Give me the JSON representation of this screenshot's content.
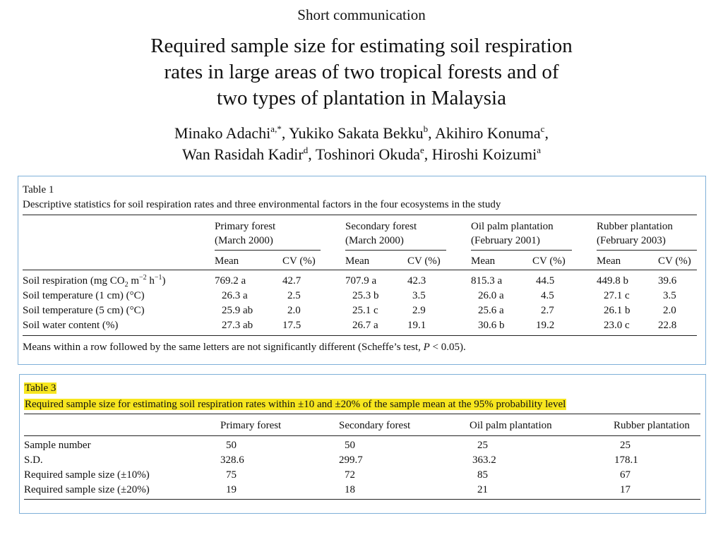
{
  "paper": {
    "kicker": "Short communication",
    "title_lines": [
      "Required sample size for estimating soil respiration",
      "rates in large areas of two tropical forests and of",
      "two types of plantation in Malaysia"
    ],
    "authors_line1": [
      {
        "name": "Minako Adachi",
        "aff": "a,*"
      },
      {
        "name": "Yukiko Sakata Bekku",
        "aff": "b"
      },
      {
        "name": "Akihiro Konuma",
        "aff": "c"
      }
    ],
    "authors_line2": [
      {
        "name": "Wan Rasidah Kadir",
        "aff": "d"
      },
      {
        "name": "Toshinori Okuda",
        "aff": "e"
      },
      {
        "name": "Hiroshi Koizumi",
        "aff": "a"
      }
    ]
  },
  "table1": {
    "label": "Table 1",
    "caption": "Descriptive statistics for soil respiration rates and three environmental factors in the four ecosystems in the study",
    "groups": [
      {
        "name": "Primary forest",
        "date": "(March 2000)"
      },
      {
        "name": "Secondary forest",
        "date": "(March 2000)"
      },
      {
        "name": "Oil palm plantation",
        "date": "(February 2001)"
      },
      {
        "name": "Rubber plantation",
        "date": "(February 2003)"
      }
    ],
    "subheaders": [
      "Mean",
      "CV (%)"
    ],
    "rows": [
      {
        "label": "Soil respiration (mg CO",
        "values": [
          [
            "769.2 a",
            "42.7"
          ],
          [
            "707.9 a",
            "42.3"
          ],
          [
            "815.3 a",
            "44.5"
          ],
          [
            "449.8 b",
            "39.6"
          ]
        ]
      },
      {
        "label": "Soil temperature (1 cm) (°C)",
        "values": [
          [
            "26.3 a",
            "2.5"
          ],
          [
            "25.3 b",
            "3.5"
          ],
          [
            "26.0 a",
            "4.5"
          ],
          [
            "27.1 c",
            "3.5"
          ]
        ]
      },
      {
        "label": "Soil temperature (5 cm) (°C)",
        "values": [
          [
            "25.9 ab",
            "2.0"
          ],
          [
            "25.1 c",
            "2.9"
          ],
          [
            "25.6 a",
            "2.7"
          ],
          [
            "26.1 b",
            "2.0"
          ]
        ]
      },
      {
        "label": "Soil water content (%)",
        "values": [
          [
            "27.3 ab",
            "17.5"
          ],
          [
            "26.7 a",
            "19.1"
          ],
          [
            "30.6 b",
            "19.2"
          ],
          [
            "23.0 c",
            "22.8"
          ]
        ]
      }
    ],
    "footnote_pre": "Means within a row followed by the same letters are not significantly different (Scheffe’s test, ",
    "footnote_p": "P",
    "footnote_post": " < 0.05)."
  },
  "table3": {
    "label": "Table 3",
    "caption": "Required sample size for estimating soil respiration rates within ±10 and ±20% of the sample mean at the 95% probability level",
    "columns": [
      "Primary forest",
      "Secondary forest",
      "Oil palm plantation",
      "Rubber plantation"
    ],
    "rows": [
      {
        "label": "Sample number",
        "values": [
          "50",
          "50",
          "25",
          "25"
        ]
      },
      {
        "label": "S.D.",
        "values": [
          "328.6",
          "299.7",
          "363.2",
          "178.1"
        ]
      },
      {
        "label": "Required sample size (±10%)",
        "values": [
          "75",
          "72",
          "85",
          "67"
        ]
      },
      {
        "label": "Required sample size (±20%)",
        "values": [
          "19",
          "18",
          "21",
          "17"
        ]
      }
    ]
  }
}
